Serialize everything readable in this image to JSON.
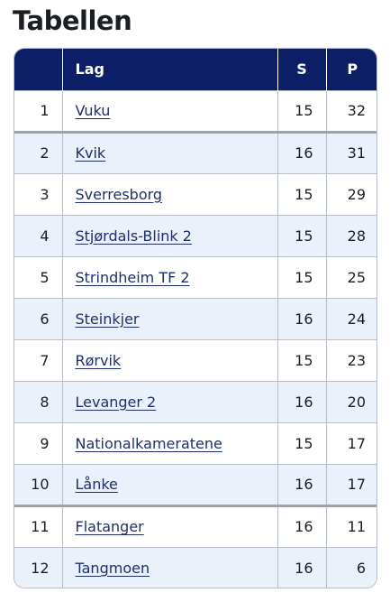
{
  "heading": "Tabellen",
  "header": {
    "rank": "",
    "team": "Lag",
    "s": "S",
    "p": "P"
  },
  "colors": {
    "header_bg": "#0c1f66",
    "stripe": "#eaf1fa",
    "link": "#1f2f6b"
  },
  "rows": [
    {
      "rank": "1",
      "team": "Vuku",
      "s": "15",
      "p": "32"
    },
    {
      "rank": "2",
      "team": "Kvik",
      "s": "16",
      "p": "31"
    },
    {
      "rank": "3",
      "team": "Sverresborg",
      "s": "15",
      "p": "29"
    },
    {
      "rank": "4",
      "team": "Stjørdals-Blink 2",
      "s": "15",
      "p": "28"
    },
    {
      "rank": "5",
      "team": "Strindheim TF 2",
      "s": "15",
      "p": "25"
    },
    {
      "rank": "6",
      "team": "Steinkjer",
      "s": "16",
      "p": "24"
    },
    {
      "rank": "7",
      "team": "Rørvik",
      "s": "15",
      "p": "23"
    },
    {
      "rank": "8",
      "team": "Levanger 2",
      "s": "16",
      "p": "20"
    },
    {
      "rank": "9",
      "team": "Nationalkameratene",
      "s": "15",
      "p": "17"
    },
    {
      "rank": "10",
      "team": "Lånke",
      "s": "16",
      "p": "17"
    },
    {
      "rank": "11",
      "team": "Flatanger",
      "s": "16",
      "p": "11"
    },
    {
      "rank": "12",
      "team": "Tangmoen",
      "s": "16",
      "p": "6"
    }
  ]
}
